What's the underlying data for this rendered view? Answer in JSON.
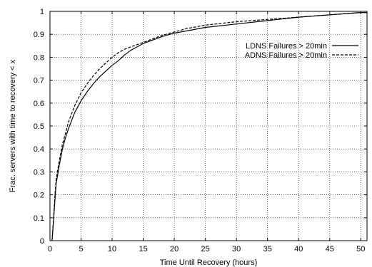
{
  "chart_data": {
    "type": "line",
    "title": "",
    "xlabel": "Time Until Recovery (hours)",
    "ylabel": "Frac. servers with time to recovery < x",
    "xlim": [
      0,
      51
    ],
    "ylim": [
      0,
      1
    ],
    "xticks": [
      0,
      5,
      10,
      15,
      20,
      25,
      30,
      35,
      40,
      45,
      50
    ],
    "yticks": [
      0,
      0.1,
      0.2,
      0.3,
      0.4,
      0.5,
      0.6,
      0.7,
      0.8,
      0.9,
      1
    ],
    "grid": true,
    "legend_position": "top-right",
    "series": [
      {
        "name": "LDNS Failures > 20min",
        "line_style": "solid",
        "color": "#000000",
        "x": [
          0.33,
          0.5,
          0.8,
          1,
          1.5,
          2,
          2.5,
          3,
          4,
          5,
          6,
          7,
          8,
          9,
          10,
          11,
          12,
          13,
          14,
          15,
          16,
          18,
          20,
          22,
          25,
          30,
          35,
          40,
          45,
          50,
          51
        ],
        "y": [
          0,
          0.06,
          0.18,
          0.25,
          0.33,
          0.4,
          0.45,
          0.49,
          0.56,
          0.61,
          0.65,
          0.685,
          0.715,
          0.74,
          0.765,
          0.785,
          0.81,
          0.83,
          0.845,
          0.86,
          0.87,
          0.89,
          0.905,
          0.915,
          0.93,
          0.945,
          0.96,
          0.975,
          0.985,
          0.995,
          0.995
        ]
      },
      {
        "name": "ADNS Failures > 20min",
        "line_style": "dashed",
        "color": "#000000",
        "x": [
          0.33,
          0.5,
          0.8,
          1,
          1.5,
          2,
          2.5,
          3,
          4,
          5,
          6,
          7,
          8,
          9,
          10,
          11,
          12,
          13,
          14,
          15,
          16,
          18,
          20,
          22,
          25,
          30,
          35,
          40,
          45,
          50,
          51
        ],
        "y": [
          0,
          0.07,
          0.2,
          0.27,
          0.35,
          0.42,
          0.47,
          0.52,
          0.59,
          0.645,
          0.685,
          0.72,
          0.75,
          0.775,
          0.8,
          0.82,
          0.835,
          0.845,
          0.855,
          0.865,
          0.875,
          0.895,
          0.91,
          0.925,
          0.94,
          0.955,
          0.965,
          0.975,
          0.985,
          0.995,
          0.995
        ]
      }
    ]
  }
}
